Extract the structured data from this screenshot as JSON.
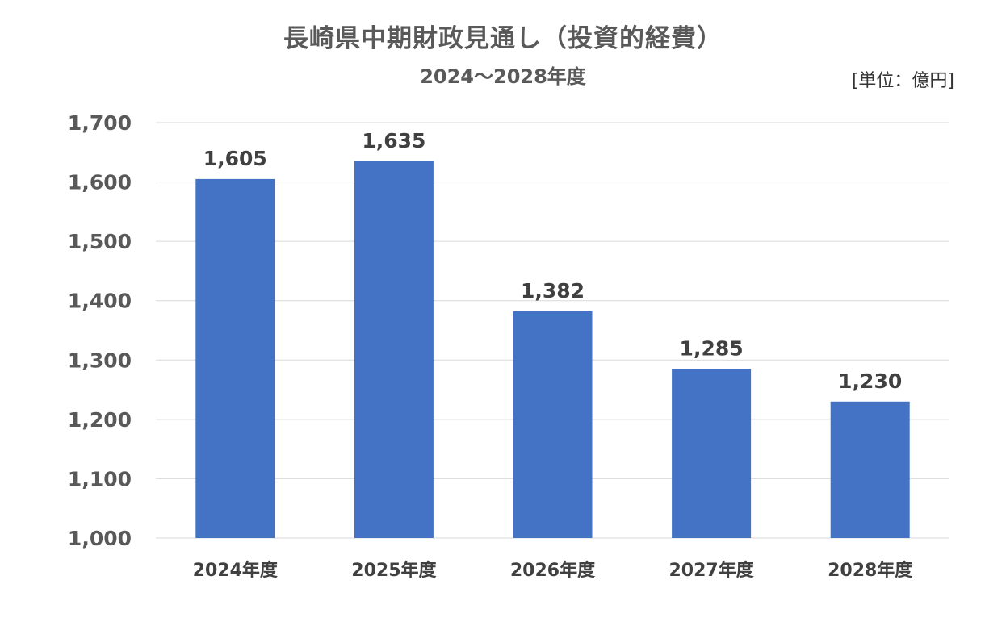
{
  "chart_data": {
    "type": "bar",
    "title": "長崎県中期財政見通し（投資的経費）",
    "subtitle": "2024～2028年度",
    "unit_label": "[単位：億円]",
    "categories": [
      "2024年度",
      "2025年度",
      "2026年度",
      "2027年度",
      "2028年度"
    ],
    "values": [
      1605,
      1635,
      1382,
      1285,
      1230
    ],
    "data_labels": [
      "1,605",
      "1,635",
      "1,382",
      "1,285",
      "1,230"
    ],
    "y_ticks": [
      1000,
      1100,
      1200,
      1300,
      1400,
      1500,
      1600,
      1700
    ],
    "y_tick_labels": [
      "1,000",
      "1,100",
      "1,200",
      "1,300",
      "1,400",
      "1,500",
      "1,600",
      "1,700"
    ],
    "ylim": [
      1000,
      1700
    ],
    "grid": true,
    "legend": "none",
    "colors": {
      "bar": "#4472C4",
      "grid": "#D9D9D9",
      "text": "#595959"
    }
  }
}
